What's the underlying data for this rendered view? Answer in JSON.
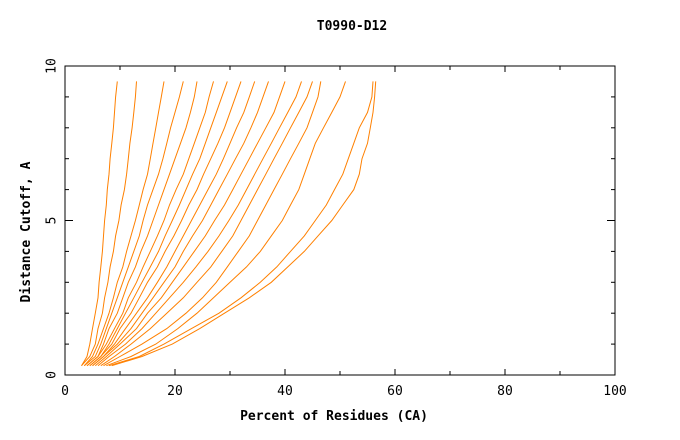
{
  "chart_data": {
    "type": "line",
    "title": "T0990-D12",
    "xlabel": "Percent of Residues (CA)",
    "ylabel": "Distance Cutoff, A",
    "xlim": [
      0,
      100
    ],
    "ylim": [
      0,
      10
    ],
    "x_ticks": [
      "0",
      "20",
      "40",
      "60",
      "80",
      "100"
    ],
    "y_ticks": [
      "0",
      "5",
      "10"
    ],
    "line_color": "#ff8000",
    "y": [
      0.3,
      0.6,
      1.0,
      1.5,
      2.0,
      2.5,
      3.0,
      3.5,
      4.0,
      4.5,
      5.0,
      5.5,
      6.0,
      6.5,
      7.0,
      7.5,
      8.0,
      8.5,
      9.0,
      9.5
    ],
    "series": [
      {
        "x": [
          3.0,
          4.0,
          4.5,
          5.0,
          5.5,
          6.0,
          6.2,
          6.5,
          6.8,
          7.0,
          7.2,
          7.5,
          7.7,
          8.0,
          8.2,
          8.5,
          8.8,
          9.0,
          9.2,
          9.5
        ]
      },
      {
        "x": [
          3.0,
          4.5,
          5.5,
          6.0,
          6.8,
          7.2,
          7.8,
          8.2,
          8.8,
          9.2,
          9.8,
          10.2,
          10.8,
          11.2,
          11.5,
          11.8,
          12.2,
          12.5,
          12.8,
          13.0
        ]
      },
      {
        "x": [
          3.5,
          5.0,
          6.0,
          7.0,
          8.0,
          8.8,
          9.5,
          10.5,
          11.2,
          12.0,
          12.8,
          13.5,
          14.2,
          15.0,
          15.5,
          16.0,
          16.5,
          17.0,
          17.5,
          18.0
        ]
      },
      {
        "x": [
          3.5,
          5.5,
          6.5,
          7.5,
          8.5,
          9.5,
          10.5,
          11.5,
          12.5,
          13.5,
          14.2,
          15.0,
          16.0,
          17.0,
          17.8,
          18.5,
          19.2,
          20.0,
          20.8,
          21.5
        ]
      },
      {
        "x": [
          4.0,
          6.0,
          7.0,
          8.0,
          9.5,
          10.5,
          11.5,
          12.8,
          13.8,
          15.0,
          16.0,
          17.0,
          18.0,
          19.0,
          20.0,
          21.0,
          22.0,
          22.8,
          23.5,
          24.0
        ]
      },
      {
        "x": [
          4.0,
          6.0,
          7.5,
          9.0,
          10.5,
          11.5,
          13.0,
          14.2,
          15.5,
          16.8,
          18.0,
          19.0,
          20.2,
          21.5,
          22.5,
          23.5,
          24.5,
          25.5,
          26.2,
          27.0
        ]
      },
      {
        "x": [
          4.5,
          6.5,
          8.0,
          9.5,
          11.0,
          12.5,
          14.0,
          15.5,
          17.0,
          18.2,
          19.5,
          20.8,
          22.0,
          23.2,
          24.5,
          25.5,
          26.5,
          27.5,
          28.5,
          29.5
        ]
      },
      {
        "x": [
          4.5,
          6.5,
          8.5,
          10.0,
          12.0,
          13.5,
          15.0,
          16.8,
          18.2,
          19.8,
          21.2,
          22.5,
          24.0,
          25.2,
          26.5,
          27.8,
          29.0,
          30.0,
          31.0,
          32.0
        ]
      },
      {
        "x": [
          5.0,
          7.0,
          9.0,
          11.0,
          13.0,
          15.0,
          16.8,
          18.5,
          20.0,
          21.5,
          23.0,
          24.5,
          26.0,
          27.5,
          28.8,
          30.0,
          31.2,
          32.5,
          33.5,
          34.5
        ]
      },
      {
        "x": [
          5.0,
          7.0,
          9.5,
          12.0,
          14.0,
          16.0,
          18.0,
          20.0,
          21.5,
          23.2,
          25.0,
          26.5,
          28.0,
          29.5,
          31.0,
          32.5,
          33.8,
          35.0,
          36.0,
          37.0
        ]
      },
      {
        "x": [
          5.5,
          7.5,
          10.0,
          13.0,
          15.0,
          17.5,
          19.5,
          21.5,
          23.5,
          25.5,
          27.2,
          29.0,
          30.5,
          32.0,
          33.5,
          35.0,
          36.5,
          38.0,
          39.0,
          40.0
        ]
      },
      {
        "x": [
          6.0,
          8.0,
          11.0,
          14.0,
          16.5,
          19.0,
          21.5,
          23.8,
          26.0,
          28.0,
          29.8,
          31.5,
          33.0,
          34.5,
          36.0,
          37.5,
          39.0,
          40.5,
          42.0,
          43.0
        ]
      },
      {
        "x": [
          6.5,
          9.0,
          12.0,
          15.5,
          18.5,
          21.5,
          24.0,
          26.5,
          28.5,
          30.5,
          32.0,
          33.5,
          35.0,
          36.5,
          38.0,
          39.5,
          41.0,
          42.5,
          44.0,
          45.0
        ]
      },
      {
        "x": [
          7.0,
          10.0,
          14.0,
          18.5,
          22.0,
          25.0,
          27.5,
          29.5,
          31.5,
          33.5,
          35.0,
          36.5,
          38.0,
          39.5,
          41.0,
          42.5,
          44.0,
          45.0,
          46.0,
          46.5
        ]
      },
      {
        "x": [
          7.5,
          12.0,
          16.5,
          20.5,
          24.0,
          27.0,
          30.0,
          33.0,
          35.5,
          37.5,
          39.5,
          41.0,
          42.5,
          43.5,
          44.5,
          45.5,
          47.0,
          48.5,
          50.0,
          51.0
        ]
      },
      {
        "x": [
          8.0,
          13.5,
          18.0,
          23.0,
          28.0,
          32.0,
          35.5,
          38.5,
          41.0,
          43.5,
          45.5,
          47.5,
          49.0,
          50.5,
          51.5,
          52.5,
          53.5,
          55.0,
          55.8,
          56.0
        ]
      },
      {
        "x": [
          8.5,
          14.0,
          19.5,
          24.5,
          29.0,
          33.5,
          37.5,
          40.5,
          43.5,
          46.0,
          48.5,
          50.5,
          52.5,
          53.5,
          54.0,
          55.0,
          55.5,
          56.0,
          56.3,
          56.5
        ]
      }
    ]
  }
}
